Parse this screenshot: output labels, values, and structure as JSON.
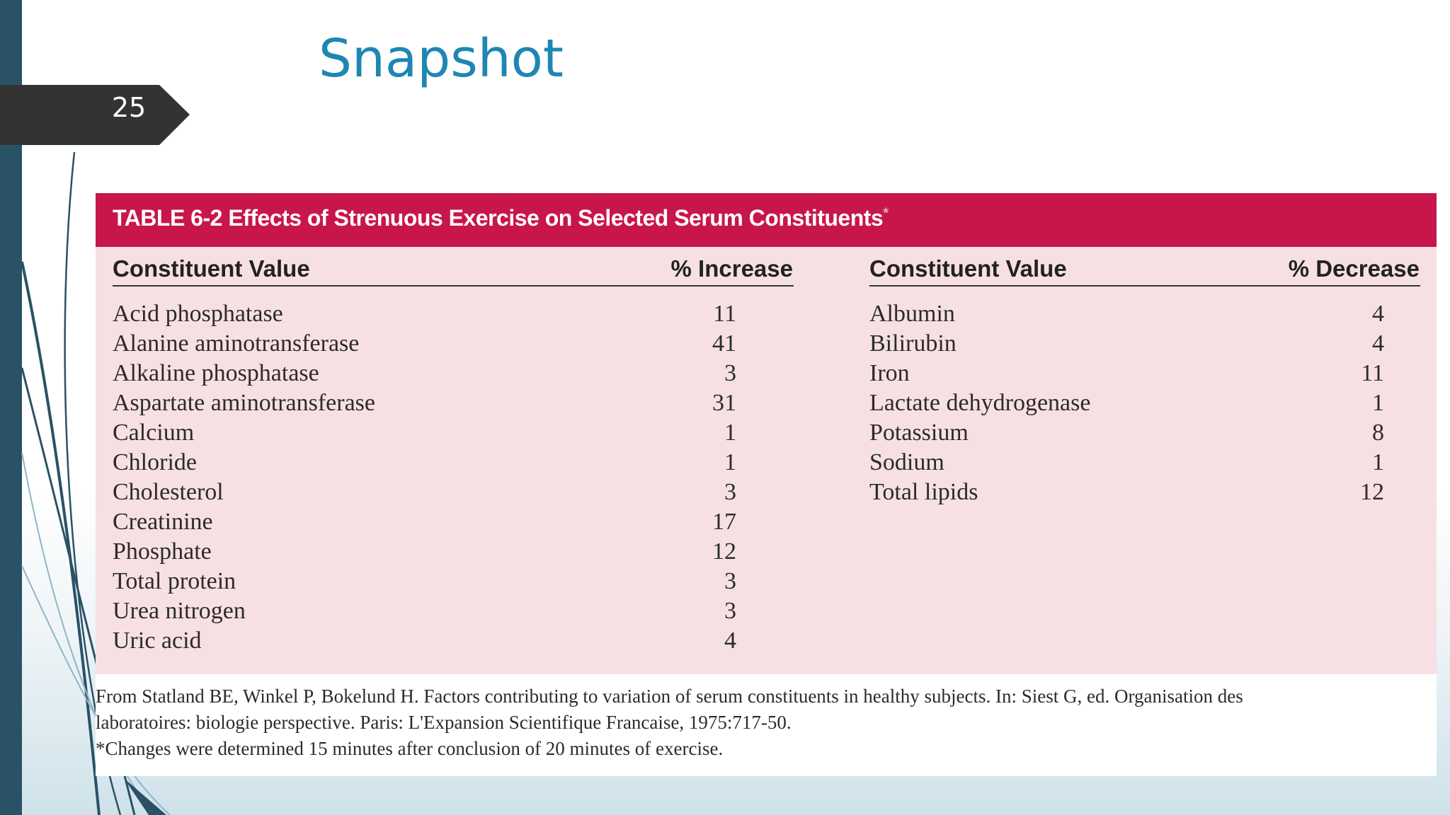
{
  "slide": {
    "number": "25",
    "title": "Snapshot"
  },
  "table": {
    "caption": "TABLE 6-2  Effects of Strenuous Exercise on Selected Serum Constituents",
    "caption_marker": "*",
    "left_headers": {
      "name": "Constituent Value",
      "value": "% Increase"
    },
    "right_headers": {
      "name": "Constituent Value",
      "value": "% Decrease"
    },
    "increase_rows": [
      {
        "name": "Acid phosphatase",
        "value": "11"
      },
      {
        "name": "Alanine aminotransferase",
        "value": "41"
      },
      {
        "name": "Alkaline phosphatase",
        "value": "3"
      },
      {
        "name": "Aspartate aminotransferase",
        "value": "31"
      },
      {
        "name": "Calcium",
        "value": "1"
      },
      {
        "name": "Chloride",
        "value": "1"
      },
      {
        "name": "Cholesterol",
        "value": "3"
      },
      {
        "name": "Creatinine",
        "value": "17"
      },
      {
        "name": "Phosphate",
        "value": "12"
      },
      {
        "name": "Total protein",
        "value": "3"
      },
      {
        "name": "Urea nitrogen",
        "value": "3"
      },
      {
        "name": "Uric acid",
        "value": "4"
      }
    ],
    "decrease_rows": [
      {
        "name": "Albumin",
        "value": "4"
      },
      {
        "name": "Bilirubin",
        "value": "4"
      },
      {
        "name": "Iron",
        "value": "11"
      },
      {
        "name": "Lactate dehydrogenase",
        "value": "1"
      },
      {
        "name": "Potassium",
        "value": "8"
      },
      {
        "name": "Sodium",
        "value": "1"
      },
      {
        "name": "Total lipids",
        "value": "12"
      }
    ],
    "footnote_lines": [
      "From Statland BE, Winkel P, Bokelund H. Factors contributing to variation of serum constituents in healthy subjects. In: Siest G, ed. Organisation des",
      "laboratoires: biologie perspective. Paris: L'Expansion Scientifique Francaise, 1975:717-50.",
      "*Changes were determined 15 minutes after conclusion of 20 minutes of exercise."
    ]
  },
  "colors": {
    "sidebar": "#2a5266",
    "title": "#1e86b3",
    "table_header": "#c8164a",
    "table_body": "#f7e0e3"
  }
}
